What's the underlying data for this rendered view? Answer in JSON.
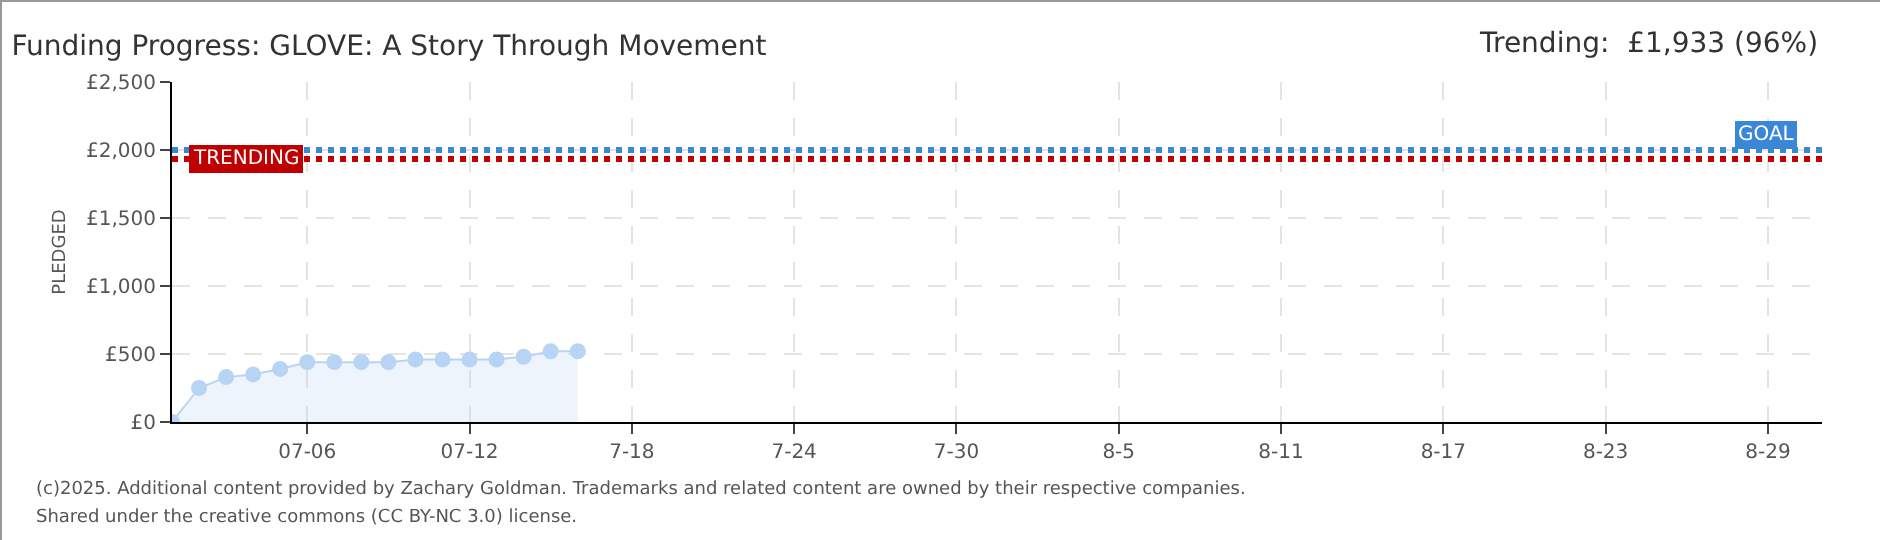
{
  "chart_data": {
    "type": "area",
    "title": "Funding Progress: GLOVE: A Story Through Movement",
    "annotations": [
      "Trending:  £1,933 (96%)",
      "(c)2025. Additional content provided by Zachary Goldman. Trademarks and related content are owned by their respective companies.",
      "Shared under the creative commons (CC BY-NC 3.0) license."
    ],
    "ylabel": "PLEDGED",
    "x": [
      "2025-07-01",
      "2025-07-02",
      "2025-07-03",
      "2025-07-04",
      "2025-07-05",
      "2025-07-06",
      "2025-07-07",
      "2025-07-08",
      "2025-07-09",
      "2025-07-10",
      "2025-07-11",
      "2025-07-12",
      "2025-07-13",
      "2025-07-14",
      "2025-07-15",
      "2025-07-16"
    ],
    "series": [
      {
        "color": "#b8d4f4",
        "values": [
          0,
          250,
          330,
          350,
          390,
          440,
          440,
          440,
          440,
          460,
          460,
          460,
          460,
          480,
          520,
          520
        ]
      }
    ],
    "xlim": [
      "2025-07-01",
      "2025-08-31"
    ],
    "xticks": [
      {
        "value": "2025-07-06",
        "label": "07-06"
      },
      {
        "value": "2025-07-12",
        "label": "07-12"
      },
      {
        "value": "2025-07-18",
        "label": "7-18"
      },
      {
        "value": "2025-07-24",
        "label": "7-24"
      },
      {
        "value": "2025-07-30",
        "label": "7-30"
      },
      {
        "value": "2025-08-05",
        "label": "8-5"
      },
      {
        "value": "2025-08-11",
        "label": "8-11"
      },
      {
        "value": "2025-08-17",
        "label": "8-17"
      },
      {
        "value": "2025-08-23",
        "label": "8-23"
      },
      {
        "value": "2025-08-29",
        "label": "8-29"
      }
    ],
    "ylim": [
      0,
      2500
    ],
    "yticks": [
      {
        "value": 0,
        "label": "£0"
      },
      {
        "value": 500,
        "label": "£500"
      },
      {
        "value": 1000,
        "label": "£1,000"
      },
      {
        "value": 1500,
        "label": "£1,500"
      },
      {
        "value": 2000,
        "label": "£2,000"
      },
      {
        "value": 2500,
        "label": "£2,500"
      }
    ],
    "ref_lines": [
      {
        "axis": "y",
        "value": 2000,
        "label": "GOAL",
        "color": "#3a87d8",
        "line_style": "dotted"
      },
      {
        "axis": "y",
        "value": 1933,
        "label": "TRENDING",
        "color": "#c00000",
        "line_style": "dotted"
      }
    ],
    "grid": true,
    "marker": "circle"
  }
}
